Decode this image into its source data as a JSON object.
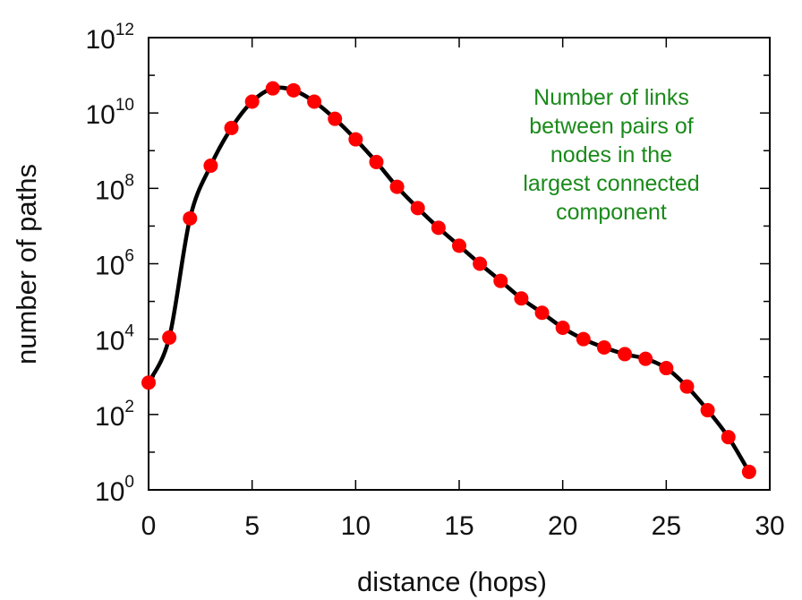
{
  "chart_data": {
    "type": "line",
    "title": "",
    "xlabel": "distance (hops)",
    "ylabel": "number of paths",
    "x_scale": "linear",
    "y_scale": "log",
    "xlim": [
      0,
      30
    ],
    "ylim": [
      1,
      1000000000000
    ],
    "x_ticks": [
      "0",
      "5",
      "10",
      "15",
      "20",
      "25",
      "30"
    ],
    "y_ticks": [
      {
        "base": "10",
        "exp": "0"
      },
      {
        "base": "10",
        "exp": "2"
      },
      {
        "base": "10",
        "exp": "4"
      },
      {
        "base": "10",
        "exp": "6"
      },
      {
        "base": "10",
        "exp": "8"
      },
      {
        "base": "10",
        "exp": "10"
      },
      {
        "base": "10",
        "exp": "12"
      }
    ],
    "grid": false,
    "annotation": {
      "lines": [
        "Number of links",
        "between pairs of",
        "nodes in the",
        "largest connected",
        "component"
      ],
      "color": "#1a8a1a"
    },
    "series": [
      {
        "line_color": "#000000",
        "marker_color": "#ff0000",
        "x": [
          0,
          1,
          2,
          3,
          4,
          5,
          6,
          7,
          8,
          9,
          10,
          11,
          12,
          13,
          14,
          15,
          16,
          17,
          18,
          19,
          20,
          21,
          22,
          23,
          24,
          25,
          26,
          27,
          28,
          29
        ],
        "y": [
          700,
          11000,
          16000000,
          400000000,
          4000000000,
          20000000000,
          45000000000,
          40000000000,
          20000000000,
          7000000000,
          2000000000,
          500000000,
          110000000,
          30000000,
          9000000,
          3000000,
          1000000,
          350000,
          120000,
          50000,
          20000,
          10000,
          6000,
          4000,
          3000,
          1700,
          550,
          130,
          25,
          3
        ]
      }
    ]
  }
}
